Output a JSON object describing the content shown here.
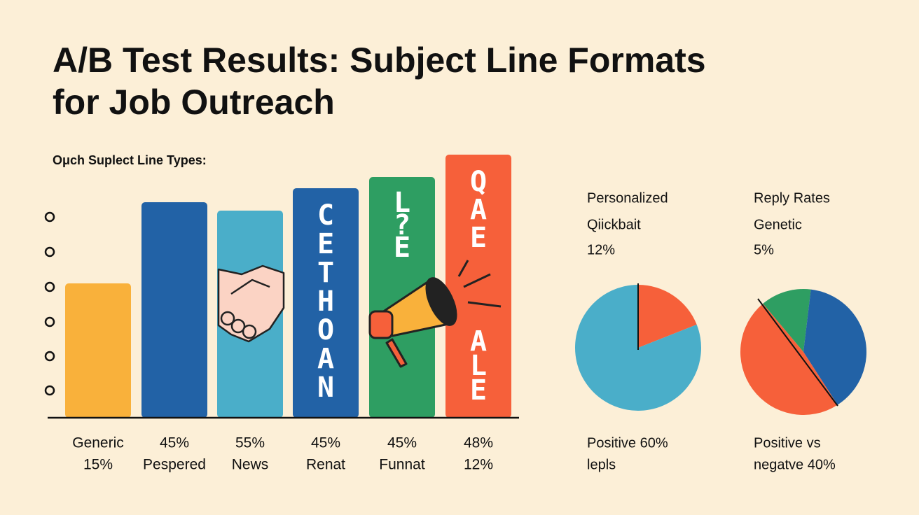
{
  "title_lines": [
    "A/B Test Results: Subject Line Formats",
    "for Job Outreach"
  ],
  "subtitle": "Oμch Suplect Line Types:",
  "decorations": {
    "bar4_letters": [
      "C",
      "E",
      "T",
      "H",
      "O",
      "A",
      "N"
    ],
    "bar5_letters": [
      "L",
      "?",
      "E"
    ],
    "bar6_letters_top": [
      "Q",
      "A",
      "E"
    ],
    "bar6_letters_bottom": [
      "A",
      "L",
      "E"
    ]
  },
  "chart_data": [
    {
      "type": "bar",
      "categories": [
        [
          "Generic",
          "15%"
        ],
        [
          "45%",
          "Pespered"
        ],
        [
          "55%",
          "News"
        ],
        [
          "45%",
          "Renat"
        ],
        [
          "45%",
          "Funnat"
        ],
        [
          "48%",
          "12%"
        ]
      ],
      "values": [
        48,
        77,
        74,
        82,
        86,
        94
      ],
      "colors": [
        "#f9b13b",
        "#2262a6",
        "#4aaec9",
        "#2262a6",
        "#2e9e62",
        "#f6603a"
      ],
      "ylim": [
        0,
        100
      ]
    },
    {
      "type": "pie",
      "title_lines": [
        "Personalized",
        "Qiickbait",
        "12%"
      ],
      "footer_lines": [
        "Positive 60%",
        "lepls"
      ],
      "values": [
        19,
        81
      ],
      "colors": [
        "#f6603a",
        "#4aaec9"
      ]
    },
    {
      "type": "pie",
      "title_lines": [
        "Reply Rates",
        "Genetic",
        "5%"
      ],
      "footer_lines": [
        "Positive vs",
        "negatve 40%"
      ],
      "values": [
        13,
        39,
        48
      ],
      "colors": [
        "#2e9e62",
        "#2262a6",
        "#f6603a"
      ]
    }
  ]
}
